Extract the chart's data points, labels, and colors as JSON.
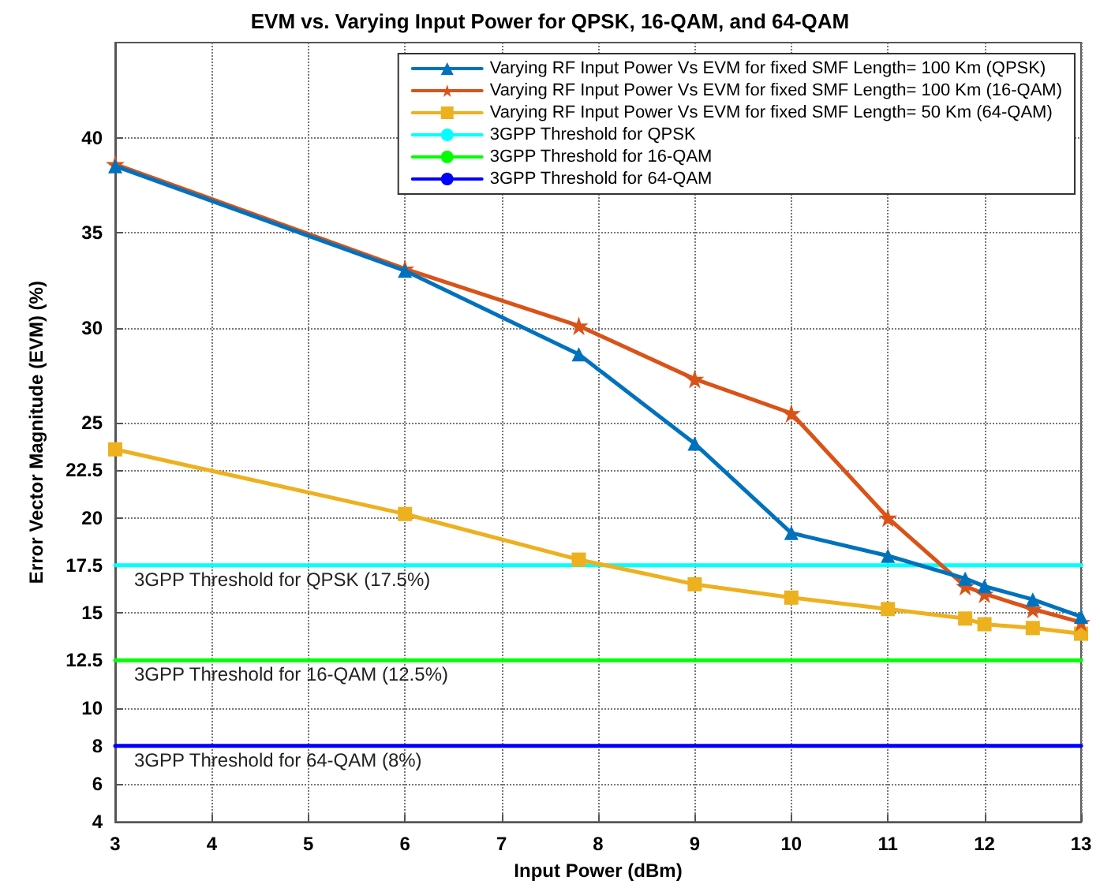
{
  "chart_data": {
    "type": "line",
    "title": "EVM vs. Varying Input Power for QPSK, 16-QAM, and 64-QAM",
    "xlabel": "Input Power (dBm)",
    "ylabel": "Error Vector Magnitude (EVM) (%)",
    "x": [
      3,
      6,
      7.8,
      9,
      10,
      11,
      11.8,
      12,
      12.5,
      13
    ],
    "series": [
      {
        "name": "Varying RF Input Power Vs EVM for fixed SMF Length= 100 Km (QPSK)",
        "color": "#0072bd",
        "marker": "triangle",
        "values": [
          38.5,
          33,
          28.6,
          23.9,
          19.2,
          18.0,
          16.8,
          16.4,
          15.7,
          14.8
        ]
      },
      {
        "name": "Varying RF Input Power Vs EVM for fixed SMF Length= 100 Km (16-QAM)",
        "color": "#d95319",
        "marker": "star",
        "values": [
          38.6,
          33.1,
          30.1,
          27.3,
          25.5,
          20.0,
          16.4,
          16.0,
          15.2,
          14.5
        ]
      },
      {
        "name": "Varying RF Input Power Vs EVM for fixed SMF Length= 50 Km (64-QAM)",
        "color": "#edb120",
        "marker": "square",
        "values": [
          23.6,
          20.2,
          17.8,
          16.5,
          15.8,
          15.2,
          14.7,
          14.4,
          14.2,
          13.9
        ]
      },
      {
        "name": "3GPP Threshold for QPSK",
        "color": "#00ffff",
        "marker": "none",
        "values": [
          17.5,
          17.5,
          17.5,
          17.5,
          17.5,
          17.5,
          17.5,
          17.5,
          17.5,
          17.5
        ]
      },
      {
        "name": "3GPP Threshold for 16-QAM",
        "color": "#00ff00",
        "marker": "none",
        "values": [
          12.5,
          12.5,
          12.5,
          12.5,
          12.5,
          12.5,
          12.5,
          12.5,
          12.5,
          12.5
        ]
      },
      {
        "name": "3GPP Threshold for 64-QAM",
        "color": "#0000ff",
        "marker": "none",
        "values": [
          8,
          8,
          8,
          8,
          8,
          8,
          8,
          8,
          8,
          8
        ]
      }
    ],
    "annotations": [
      "3GPP Threshold for QPSK (17.5%)",
      "3GPP Threshold for 16-QAM (12.5%)",
      "3GPP Threshold for 64-QAM (8%)"
    ],
    "xlim": [
      3,
      13
    ],
    "xticks": [
      3,
      4,
      5,
      6,
      7,
      8,
      9,
      10,
      11,
      12,
      13
    ],
    "ylim": [
      4,
      45
    ],
    "yticks": [
      4,
      6,
      8,
      10,
      12.5,
      15,
      17.5,
      20,
      22.5,
      25,
      30,
      35,
      40
    ],
    "grid": true,
    "legend": "top right",
    "line_style": "solid"
  }
}
